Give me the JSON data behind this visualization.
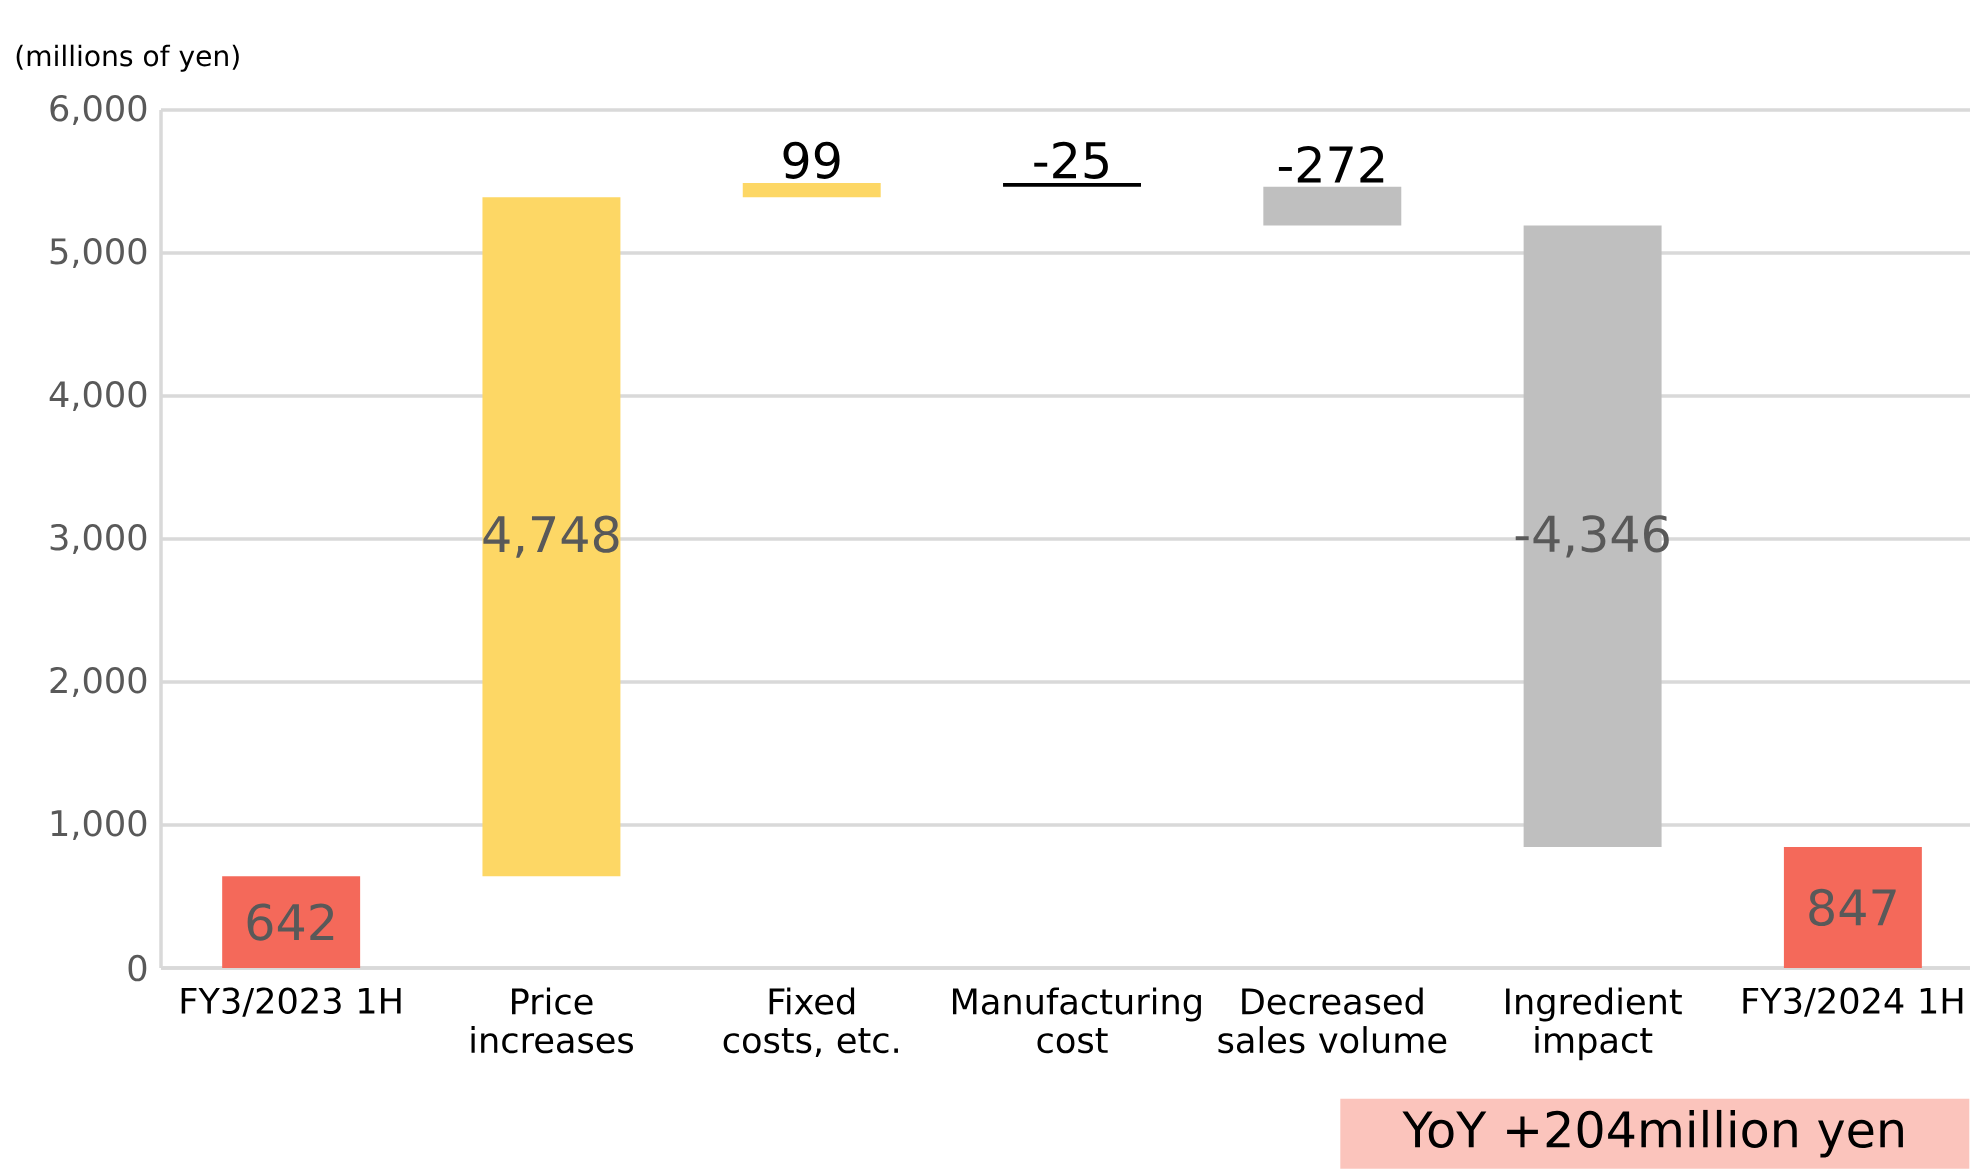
{
  "chart_data": {
    "type": "bar",
    "ylabel": "(millions of yen)",
    "categories": [
      "FY3/2023 1H",
      "Price increases",
      "Fixed costs, etc.",
      "Manufacturing cost",
      "Decreased sales volume",
      "Ingredient impact",
      "FY3/2024 1H"
    ],
    "values": [
      642,
      4748,
      99,
      -25,
      -272,
      -4346,
      847
    ],
    "base": [
      0,
      642,
      5390,
      5489,
      5464,
      5192,
      0
    ],
    "colors": [
      "#f4695a",
      "#fdd765",
      "#fdd765",
      "#000000",
      "#bfbfbf",
      "#bfbfbf",
      "#f4695a"
    ],
    "value_labels": [
      "642",
      "4,748",
      "99",
      "-25",
      "-272",
      "-4,346",
      "847"
    ],
    "ylim": [
      0,
      6000
    ],
    "yticks": [
      0,
      {
        "value": 1000,
        "label": "1,000"
      },
      {
        "value": 2000,
        "label": "2,000"
      },
      {
        "value": 3000,
        "label": "3,000"
      },
      {
        "value": 4000,
        "label": "4,000"
      },
      {
        "value": 5000,
        "label": "5,000"
      },
      {
        "value": 6000,
        "label": "6,000"
      }
    ],
    "grid": "y",
    "annotations": [
      "YoY +204million yen"
    ]
  }
}
